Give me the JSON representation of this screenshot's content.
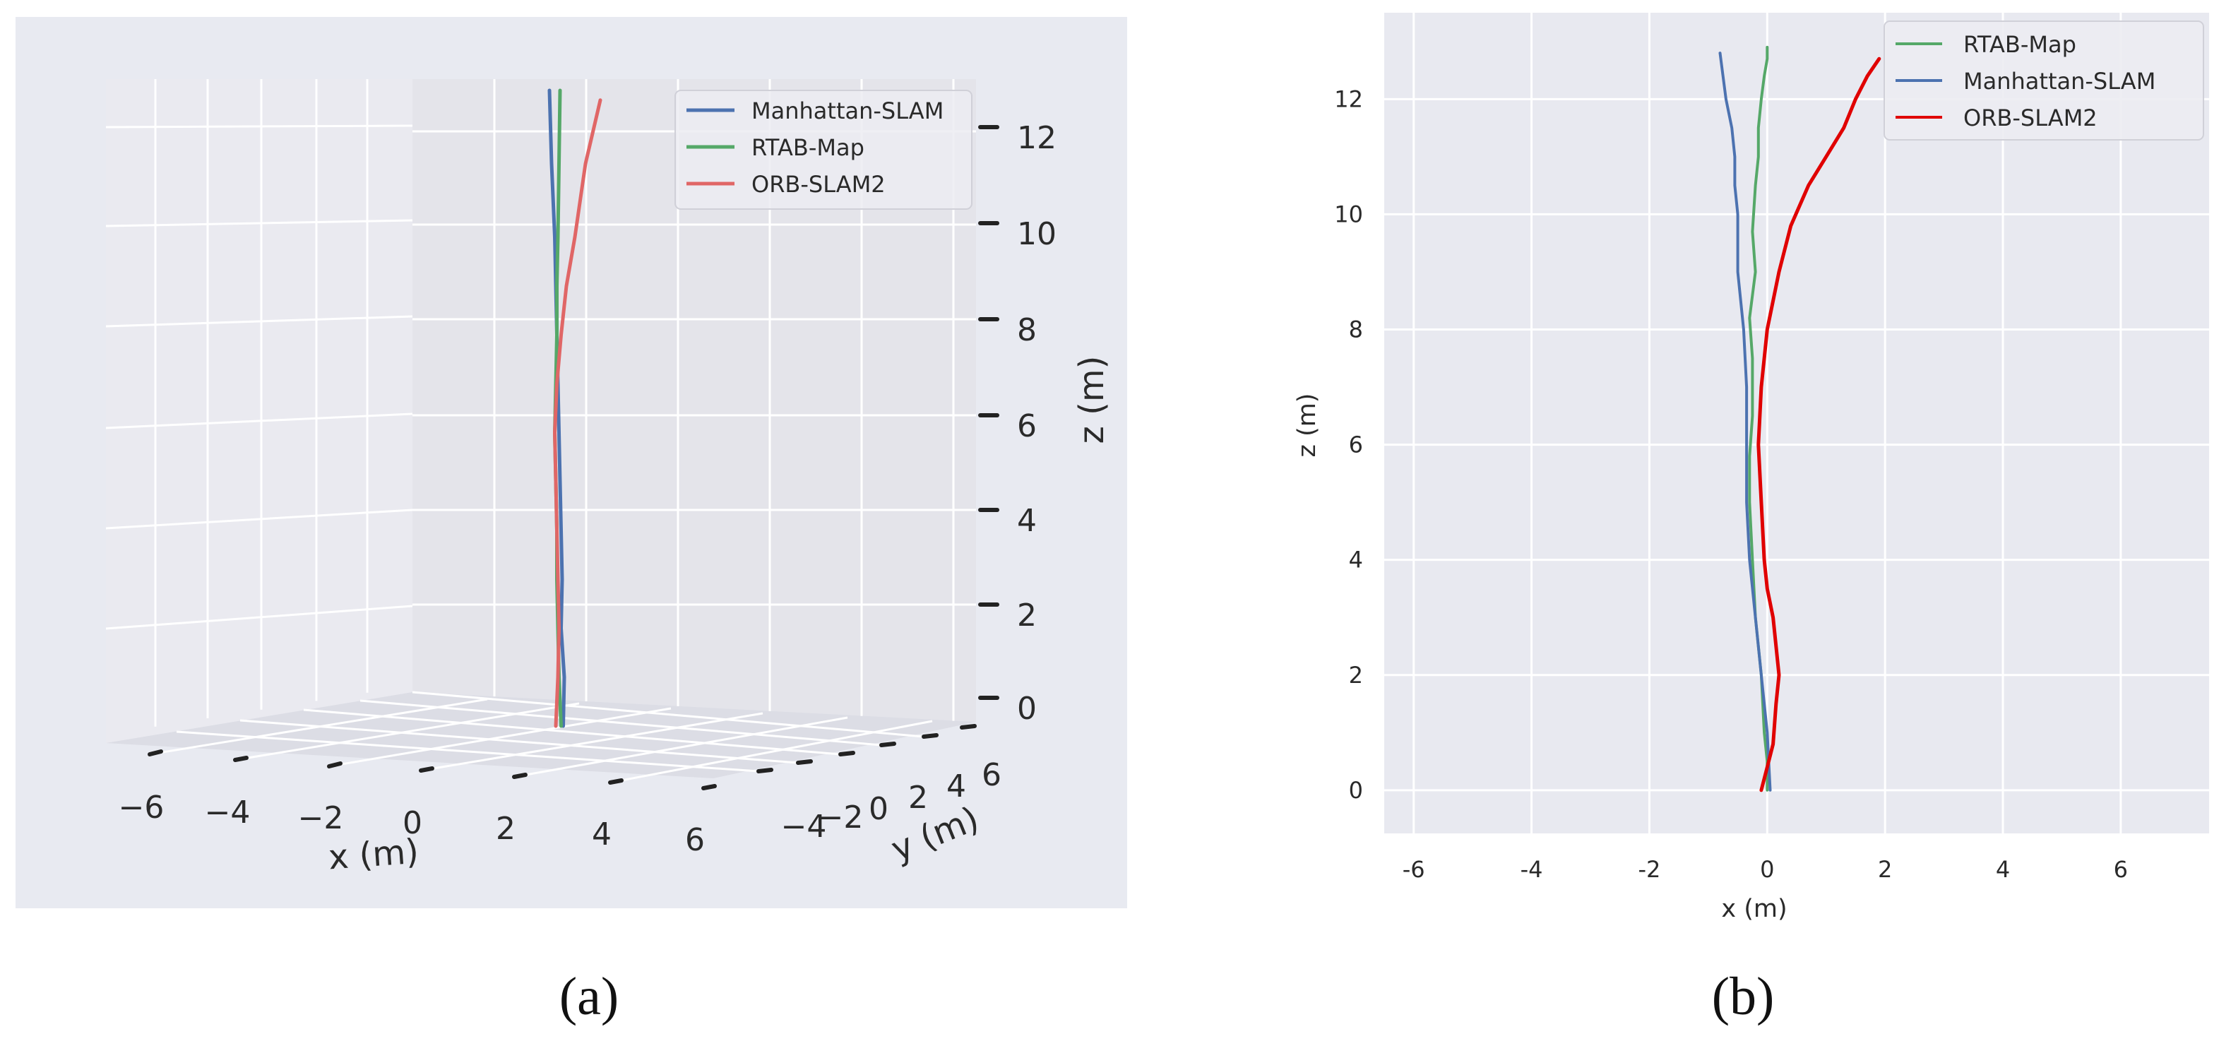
{
  "colors": {
    "figure_bg": "#ffffff",
    "panel_a_bg": "#e8eaf1",
    "pane_left": "#eaeaf0",
    "pane_back": "#e4e4ea",
    "pane_floor": "#dcdde5",
    "plot_b_bg": "#e8e9f0",
    "grid": "#ffffff",
    "manhattan": "#4c72b0",
    "rtab": "#55a868",
    "orb_a": "#e06666",
    "orb_b": "#e00000"
  },
  "chart_data": [
    {
      "id": "a",
      "type": "line",
      "projection": "3d",
      "panel_label": "(a)",
      "xlabel": "x (m)",
      "ylabel": "y (m)",
      "zlabel": "z (m)",
      "x_ticks": [
        "−6",
        "−4",
        "−2",
        "0",
        "2",
        "4",
        "6"
      ],
      "y_ticks": [
        "−4",
        "−2",
        "0",
        "2",
        "4",
        "6"
      ],
      "z_ticks": [
        "0",
        "2",
        "4",
        "6",
        "8",
        "10",
        "12"
      ],
      "xlim": [
        -6.5,
        6.5
      ],
      "zlim": [
        -0.3,
        13
      ],
      "legend": [
        "Manhattan-SLAM",
        "RTAB-Map",
        "ORB-SLAM2"
      ],
      "series": [
        {
          "name": "Manhattan-SLAM",
          "color_key": "manhattan",
          "x": [
            0.25,
            0.3,
            0.15,
            0.2,
            0.15,
            0.1,
            0.05,
            0.0,
            -0.05,
            -0.1,
            -0.15,
            -0.3,
            -0.4
          ],
          "z": [
            0.0,
            1.0,
            2.0,
            3.0,
            4.0,
            5.0,
            6.0,
            7.0,
            8.0,
            9.0,
            10.0,
            11.5,
            13.0
          ]
        },
        {
          "name": "RTAB-Map",
          "color_key": "rtab",
          "x": [
            0.15,
            0.05,
            0.0,
            -0.05,
            -0.05,
            -0.1,
            -0.15,
            -0.1,
            -0.05,
            -0.05,
            0.0,
            0.05,
            0.1
          ],
          "z": [
            0.0,
            1.0,
            2.0,
            3.0,
            4.0,
            5.0,
            6.0,
            7.0,
            8.0,
            9.0,
            10.0,
            11.5,
            13.0
          ]
        },
        {
          "name": "ORB-SLAM2",
          "color_key": "orb_a",
          "x": [
            -0.1,
            0.0,
            0.05,
            0.0,
            -0.05,
            -0.1,
            -0.15,
            -0.05,
            0.15,
            0.4,
            0.8,
            1.3,
            2.0
          ],
          "z": [
            0.0,
            1.0,
            2.0,
            3.0,
            4.0,
            5.0,
            6.0,
            7.0,
            8.0,
            9.0,
            10.0,
            11.5,
            12.8
          ]
        }
      ]
    },
    {
      "id": "b",
      "type": "line",
      "panel_label": "(b)",
      "xlabel": "x (m)",
      "ylabel": "z (m)",
      "xlim": [
        -6.5,
        7.5
      ],
      "ylim": [
        -0.75,
        13.5
      ],
      "x_ticks": [
        -6,
        -4,
        -2,
        0,
        2,
        4,
        6
      ],
      "y_ticks": [
        0,
        2,
        4,
        6,
        8,
        10,
        12
      ],
      "legend": [
        "RTAB-Map",
        "Manhattan-SLAM",
        "ORB-SLAM2"
      ],
      "series": [
        {
          "name": "RTAB-Map",
          "color_key": "rtab",
          "x": [
            0.0,
            0.0,
            -0.05,
            -0.1,
            -0.2,
            -0.25,
            -0.3,
            -0.3,
            -0.25,
            -0.25,
            -0.3,
            -0.2,
            -0.25,
            -0.2,
            -0.15,
            -0.15,
            -0.1,
            -0.05,
            0.0,
            0.0
          ],
          "y": [
            0.0,
            0.5,
            1.0,
            2.0,
            3.0,
            4.0,
            5.0,
            5.8,
            6.5,
            7.5,
            8.2,
            9.0,
            9.7,
            10.5,
            11.0,
            11.5,
            12.0,
            12.4,
            12.7,
            12.9
          ]
        },
        {
          "name": "Manhattan-SLAM",
          "color_key": "manhattan",
          "x": [
            0.05,
            0.0,
            -0.1,
            -0.2,
            -0.3,
            -0.35,
            -0.35,
            -0.35,
            -0.4,
            -0.5,
            -0.5,
            -0.55,
            -0.55,
            -0.6,
            -0.7,
            -0.75,
            -0.8
          ],
          "y": [
            0.0,
            1.0,
            2.0,
            3.0,
            4.0,
            5.0,
            6.0,
            7.0,
            8.0,
            9.0,
            10.0,
            10.5,
            11.0,
            11.5,
            12.0,
            12.4,
            12.8
          ]
        },
        {
          "name": "ORB-SLAM2",
          "color_key": "orb_b",
          "x": [
            -0.1,
            0.0,
            0.1,
            0.15,
            0.2,
            0.15,
            0.1,
            0.0,
            -0.05,
            -0.1,
            -0.15,
            -0.1,
            0.0,
            0.2,
            0.4,
            0.7,
            1.0,
            1.3,
            1.5,
            1.7,
            1.9
          ],
          "y": [
            0.0,
            0.4,
            0.8,
            1.5,
            2.0,
            2.5,
            3.0,
            3.5,
            4.0,
            5.0,
            6.0,
            7.0,
            8.0,
            9.0,
            9.8,
            10.5,
            11.0,
            11.5,
            12.0,
            12.4,
            12.7
          ]
        }
      ]
    }
  ]
}
